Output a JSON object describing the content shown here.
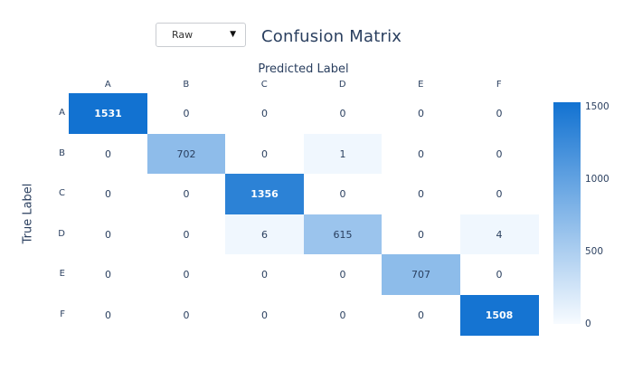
{
  "header": {
    "dropdown_value": "Raw",
    "title": "Confusion Matrix"
  },
  "chart_data": {
    "type": "heatmap",
    "title": "Confusion Matrix",
    "xlabel": "Predicted Label",
    "ylabel": "True Label",
    "categories": [
      "A",
      "B",
      "C",
      "D",
      "E",
      "F"
    ],
    "matrix": [
      [
        1531,
        0,
        0,
        0,
        0,
        0
      ],
      [
        0,
        702,
        0,
        1,
        0,
        0
      ],
      [
        0,
        0,
        1356,
        0,
        0,
        0
      ],
      [
        0,
        0,
        6,
        615,
        0,
        4
      ],
      [
        0,
        0,
        0,
        0,
        707,
        0
      ],
      [
        0,
        0,
        0,
        0,
        0,
        1508
      ]
    ],
    "colorbar": {
      "min": 0,
      "max": 1531,
      "ticks": [
        "0",
        "500",
        "1000",
        "1500"
      ]
    },
    "colorscale": {
      "min_color": "#f7fbff",
      "max_color": "#1272d1",
      "zero_color": "#ffffff"
    },
    "legend_position": "right",
    "grid": false
  },
  "colors": {
    "accent": "#1272d1",
    "text": "#2a3f5f"
  }
}
